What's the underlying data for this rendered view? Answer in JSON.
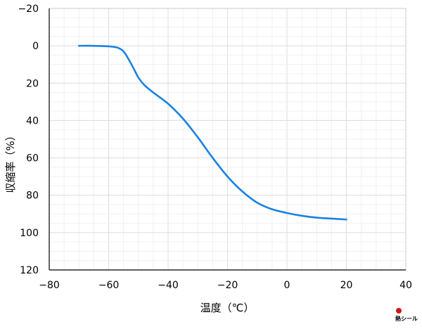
{
  "chart_data": {
    "type": "line",
    "title": "",
    "xlabel": "温度（℃）",
    "ylabel": "収縮率（%）",
    "xlim": [
      -80,
      40
    ],
    "ylim": [
      -20,
      120
    ],
    "y_inverted": true,
    "x_ticks": [
      -80,
      -60,
      -40,
      -20,
      0,
      20,
      40
    ],
    "y_ticks": [
      -20,
      0,
      20,
      40,
      60,
      80,
      100,
      120
    ],
    "grid": true,
    "legend": "none",
    "series": [
      {
        "color": "#1a82e2",
        "x": [
          -70,
          -65,
          -60,
          -57,
          -55,
          -53,
          -51,
          -50,
          -48,
          -45,
          -40,
          -35,
          -30,
          -25,
          -20,
          -15,
          -10,
          -5,
          0,
          5,
          10,
          15,
          20
        ],
        "y": [
          0,
          0,
          0.3,
          1,
          3,
          8,
          14,
          17,
          21,
          25,
          31,
          39,
          49,
          60,
          70,
          78,
          84,
          87.5,
          89.5,
          91,
          92,
          92.5,
          93
        ]
      }
    ]
  },
  "logo": {
    "text": "熱シール",
    "accent": "#d0141a"
  }
}
